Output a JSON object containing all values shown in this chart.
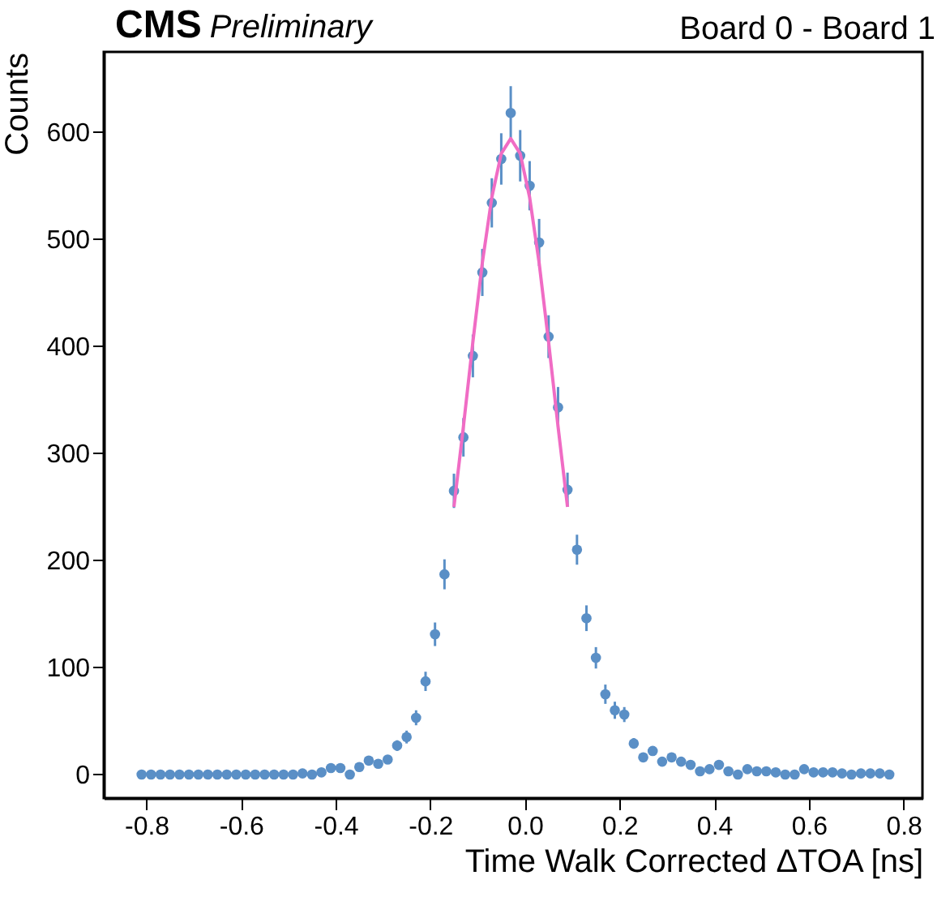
{
  "chart_data": {
    "type": "scatter",
    "title": "CMS",
    "subtitle": "Preliminary",
    "annotations": [
      "Board 0 - Board 1"
    ],
    "xlabel": "Time Walk Corrected ΔTOA [ns]",
    "ylabel": "Counts",
    "xlim": [
      -0.89,
      0.84
    ],
    "ylim": [
      -22,
      675
    ],
    "xticks": [
      -0.8,
      -0.6,
      -0.4,
      -0.2,
      {
        "value": 0,
        "label": "0.0"
      },
      0.2,
      0.4,
      0.6,
      0.8
    ],
    "yticks": [
      0,
      100,
      200,
      300,
      400,
      500,
      600
    ],
    "grid": false,
    "series": [
      {
        "color": "#5a8fc6",
        "marker": "circle",
        "x": [
          -0.81,
          -0.79,
          -0.77,
          -0.75,
          -0.73,
          -0.71,
          -0.69,
          -0.67,
          -0.65,
          -0.63,
          -0.61,
          -0.59,
          -0.57,
          -0.55,
          -0.53,
          -0.51,
          -0.49,
          -0.47,
          -0.45,
          -0.43,
          -0.41,
          -0.39,
          -0.37,
          -0.35,
          -0.33,
          -0.31,
          -0.29,
          -0.27,
          -0.25,
          -0.23,
          -0.21,
          -0.19,
          -0.17,
          -0.15,
          -0.13,
          -0.11,
          -0.09,
          -0.07,
          -0.05,
          -0.03,
          -0.01,
          0.01,
          0.03,
          0.05,
          0.07,
          0.09,
          0.11,
          0.13,
          0.15,
          0.17,
          0.19,
          0.21,
          0.23,
          0.25,
          0.27,
          0.29,
          0.31,
          0.33,
          0.35,
          0.37,
          0.39,
          0.41,
          0.43,
          0.45,
          0.47,
          0.49,
          0.51,
          0.53,
          0.55,
          0.57,
          0.59,
          0.61,
          0.63,
          0.65,
          0.67,
          0.69,
          0.71,
          0.73,
          0.75,
          0.77
        ],
        "values": [
          0,
          0,
          0,
          0,
          0,
          0,
          0,
          0,
          0,
          0,
          0,
          0,
          0,
          0,
          0,
          0,
          0,
          1,
          0,
          2,
          6,
          6,
          0,
          7,
          13,
          10,
          14,
          27,
          35,
          53,
          87,
          131,
          187,
          265,
          315,
          391,
          469,
          534,
          575,
          618,
          578,
          550,
          497,
          409,
          343,
          266,
          210,
          146,
          109,
          75,
          60,
          56,
          29,
          16,
          22,
          12,
          16,
          12,
          9,
          3,
          5,
          9,
          3,
          0,
          5,
          3,
          3,
          2,
          0,
          0,
          5,
          2,
          2,
          2,
          1,
          0,
          1,
          1,
          1,
          0
        ],
        "errors": [
          null,
          null,
          null,
          null,
          null,
          null,
          null,
          null,
          null,
          null,
          null,
          null,
          null,
          null,
          null,
          null,
          null,
          null,
          null,
          null,
          null,
          null,
          null,
          null,
          null,
          null,
          null,
          5,
          6,
          7,
          9,
          11,
          14,
          16,
          18,
          20,
          22,
          23,
          24,
          25,
          24,
          23,
          22,
          20,
          19,
          16,
          14,
          12,
          10,
          9,
          8,
          7,
          5,
          null,
          null,
          null,
          null,
          null,
          null,
          null,
          null,
          null,
          null,
          null,
          null,
          null,
          null,
          null,
          null,
          null,
          null,
          null,
          null,
          null,
          null,
          null,
          null,
          null,
          null,
          null
        ]
      },
      {
        "type": "line",
        "color": "#f06cc4",
        "x": [
          -0.15,
          -0.13,
          -0.11,
          -0.09,
          -0.07,
          -0.05,
          -0.03,
          -0.01,
          0.01,
          0.03,
          0.05,
          0.07,
          0.09
        ],
        "values": [
          250,
          325,
          404,
          478,
          539,
          580,
          594,
          580,
          539,
          478,
          404,
          325,
          250
        ]
      }
    ]
  }
}
